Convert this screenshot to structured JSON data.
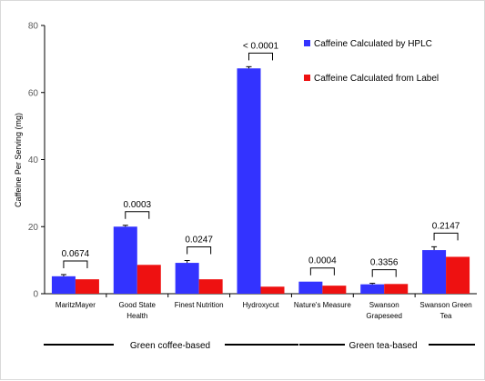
{
  "chart_data": {
    "type": "bar",
    "title": "",
    "xlabel": "",
    "ylabel": "Caffeine Per Serving (mg)",
    "ylim": [
      0,
      80
    ],
    "yticks": [
      0,
      20,
      40,
      60,
      80
    ],
    "grid": false,
    "legend_position": "top-right",
    "categories": [
      "MaritzMayer",
      "Good State Health",
      "Finest Nutrition",
      "Hydroxycut",
      "Nature's Measure",
      "Swanson Grapeseed",
      "Swanson Green Tea"
    ],
    "category_labels": [
      [
        "MaritzMayer"
      ],
      [
        "Good State",
        "Health"
      ],
      [
        "Finest Nutrition"
      ],
      [
        "Hydroxycut"
      ],
      [
        "Nature's Measure"
      ],
      [
        "Swanson",
        "Grapeseed"
      ],
      [
        "Swanson Green",
        "Tea"
      ]
    ],
    "series": [
      {
        "name": "Caffeine Calculated by HPLC",
        "color": "#3333ff",
        "values": [
          5.2,
          20.0,
          9.2,
          67.2,
          3.6,
          2.8,
          13.0
        ],
        "errors": [
          0.5,
          0.4,
          0.7,
          0.5,
          0.0,
          0.3,
          1.0
        ]
      },
      {
        "name": "Caffeine Calculated from Label",
        "color": "#ee1111",
        "values": [
          4.3,
          8.6,
          4.3,
          2.1,
          2.4,
          2.9,
          11.0
        ]
      }
    ],
    "annotations": [
      "0.0674",
      "0.0003",
      "0.0247",
      "< 0.0001",
      "0.0004",
      "0.3356",
      "0.2147"
    ],
    "groups": [
      {
        "label": "Green coffee-based"
      },
      {
        "label": "Green tea-based"
      }
    ]
  }
}
